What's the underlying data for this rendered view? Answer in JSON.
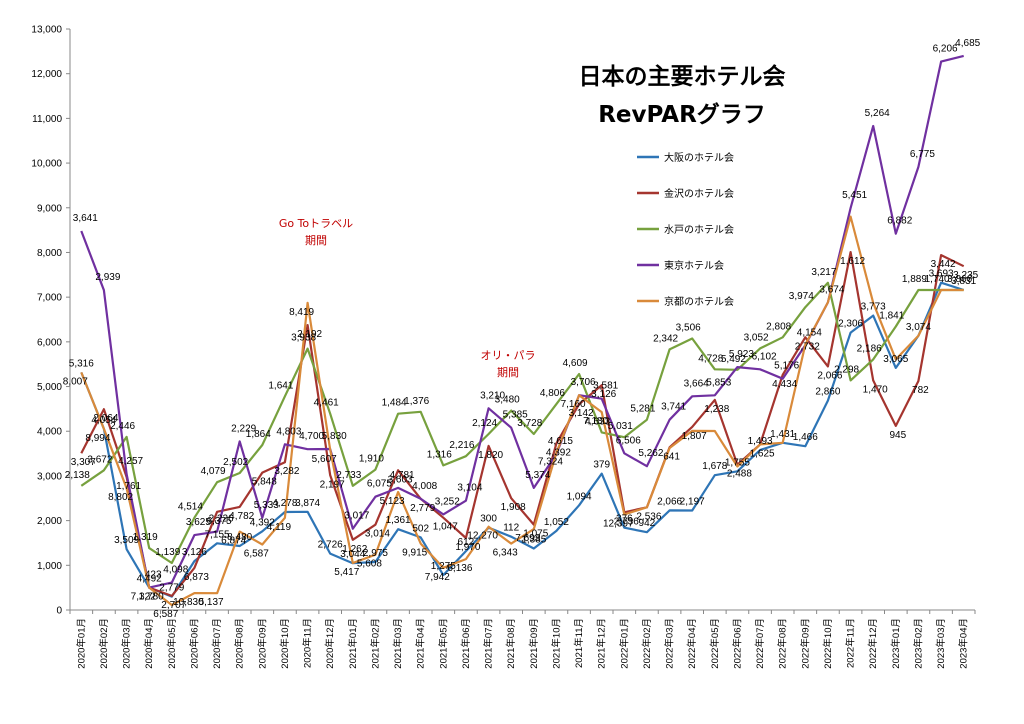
{
  "chart_data": {
    "type": "line",
    "title": "日本の主要ホテル会",
    "subtitle": "RevPARグラフ",
    "ylim": [
      0,
      13000
    ],
    "y_ticks": [
      "0",
      "1,000",
      "2,000",
      "3,000",
      "4,000",
      "5,000",
      "6,000",
      "7,000",
      "8,000",
      "9,000",
      "10,000",
      "11,000",
      "12,000",
      "13,000"
    ],
    "grid": false,
    "legend_position": "right-middle",
    "categories": [
      "2020年01月",
      "2020年02月",
      "2020年03月",
      "2020年04月",
      "2020年05月",
      "2020年06月",
      "2020年07月",
      "2020年08月",
      "2020年09月",
      "2020年10月",
      "2020年11月",
      "2020年12月",
      "2021年01月",
      "2021年02月",
      "2021年03月",
      "2021年04月",
      "2021年05月",
      "2021年06月",
      "2021年07月",
      "2021年08月",
      "2021年09月",
      "2021年10月",
      "2021年11月",
      "2021年12月",
      "2022年01月",
      "2022年02月",
      "2022年03月",
      "2022年04月",
      "2022年05月",
      "2022年06月",
      "2022年07月",
      "2022年08月",
      "2022年09月",
      "2022年10月",
      "2022年11月",
      "2022年12月",
      "2023年01月",
      "2023年02月",
      "2023年03月",
      "2023年04月"
    ],
    "series": [
      {
        "name": "大阪のホテル会",
        "color": "#2e75b6",
        "values": [
          5316,
          4054,
          1361,
          502,
          300,
          1094,
          1493,
          1431,
          1761,
          2192,
          2197,
          1262,
          1047,
          1075,
          1807,
          1625,
          782,
          1319,
          1841,
          1641,
          1376,
          1770,
          2342,
          3052,
          1841,
          1740,
          2229,
          2226,
          3017,
          3104,
          3581,
          3741,
          3664,
          4685,
          6206,
          6587,
          5417,
          6136,
          7324,
          7160
        ]
      },
      {
        "name": "金沢のホテル会",
        "color": "#a5352f",
        "values": [
          3509,
          4492,
          2975,
          502,
          316,
          942,
          2197,
          2306,
          3074,
          3307,
          6375,
          3014,
          1570,
          1908,
          3126,
          2488,
          2066,
          1612,
          3672,
          2502,
          1910,
          3728,
          4606,
          5031,
          2186,
          2298,
          3641,
          4098,
          4700,
          3252,
          3706,
          5262,
          6102,
          5451,
          8007,
          5137,
          4119,
          5123,
          7942,
          7693
        ]
      },
      {
        "name": "水戸のホテル会",
        "color": "#77a13e",
        "values": [
          2779,
          3126,
          3874,
          1385,
          1052,
          2066,
          2860,
          3065,
          3693,
          4782,
          5848,
          4392,
          2779,
          3142,
          4392,
          4434,
          3235,
          3442,
          3938,
          4461,
          3938,
          4606,
          5281,
          3974,
          3866,
          4257,
          5830,
          6075,
          5385,
          5374,
          5853,
          6102,
          6775,
          7322,
          5137,
          5608,
          6343,
          7160,
          7160,
          7160
        ]
      },
      {
        "name": "東京ホテル会",
        "color": "#7030a0",
        "values": [
          8480,
          7155,
          3044,
          502,
          612,
          1676,
          1755,
          3773,
          2064,
          3707,
          3597,
          3603,
          1820,
          2536,
          2732,
          2488,
          2138,
          2446,
          4514,
          4079,
          2733,
          3488,
          4806,
          4728,
          3506,
          3217,
          4257,
          4781,
          4803,
          5436,
          5385,
          5176,
          5923,
          6882,
          8994,
          10830,
          8419,
          9915,
          12270,
          12397
        ]
      },
      {
        "name": "京都のホテル会",
        "color": "#d98a3a",
        "values": [
          5316,
          4054,
          2726,
          502,
          112,
          379,
          376,
          1755,
          1466,
          2064,
          6873,
          3582,
          1051,
          1238,
          2641,
          1485,
          945,
          1139,
          1864,
          1486,
          1810,
          3520,
          4806,
          4428,
          2138,
          2298,
          3625,
          4008,
          4006,
          3210,
          3706,
          3741,
          5938,
          6882,
          8802,
          6874,
          5608,
          6136,
          7160,
          7160
        ]
      }
    ],
    "data_labels_visible": [
      "5,316",
      "4,054",
      "3,509",
      "4,492",
      "2,779",
      "3,126",
      "7,155",
      "8,480",
      "4,392",
      "4,278",
      "3,874",
      "2,726",
      "3,044",
      "2,975",
      "1,361",
      "502",
      "1,275",
      "612",
      "300",
      "112",
      "1,385",
      "1,052",
      "1,094",
      "379",
      "376",
      "942",
      "2,066",
      "2,197",
      "1,678",
      "1,755",
      "1,493",
      "1,431",
      "1,466",
      "2,860",
      "2,306",
      "3,773",
      "3,065",
      "3,074",
      "3,693",
      "3,831",
      "3,307",
      "2,064",
      "1,761",
      "1,780",
      "2,707",
      "6,873",
      "6,375",
      "4,782",
      "5,848",
      "3,282",
      "2,192",
      "2,197",
      "1,262",
      "3,014",
      "3,603",
      "2,779",
      "1,047",
      "1,970",
      "1,820",
      "1,908",
      "1,075",
      "4,392",
      "3,142",
      "3,126",
      "2,736",
      "2,536",
      "641",
      "1,807",
      "1,238",
      "2,488",
      "1,625",
      "4,434",
      "2,732",
      "2,066",
      "1,612",
      "1,470",
      "945",
      "782",
      "3,442",
      "3,235",
      "2,138",
      "3,672",
      "2,446",
      "1,319",
      "1,139",
      "4,514",
      "4,079",
      "2,502",
      "1,864",
      "1,641",
      "3,938",
      "4,461",
      "2,733",
      "1,910",
      "1,484",
      "1,376",
      "1,316",
      "2,216",
      "2,124",
      "3,480",
      "3,728",
      "4,806",
      "4,609",
      "4,633",
      "5,031",
      "5,281",
      "2,342",
      "3,506",
      "4,728",
      "5,492",
      "3,052",
      "2,808",
      "3,974",
      "3,217",
      "2,298",
      "2,186",
      "1,841",
      "1,889",
      "1,740",
      "3,866",
      "3,641",
      "2,939",
      "4,257",
      "423",
      "4,098",
      "3,625",
      "2,226",
      "2,229",
      "5,333",
      "4,803",
      "4,700",
      "5,830",
      "3,017",
      "6,075",
      "4,781",
      "4,008",
      "3,252",
      "3,104",
      "3,210",
      "5,385",
      "5,374",
      "4,615",
      "3,706",
      "3,581",
      "6,506",
      "5,262",
      "3,741",
      "3,664",
      "5,853",
      "5,923",
      "6,102",
      "5,176",
      "4,154",
      "3,674",
      "5,451",
      "5,264",
      "6,882",
      "6,775",
      "6,206",
      "4,685",
      "8,007",
      "8,994",
      "8,802",
      "7,322",
      "6,587",
      "10,830",
      "5,137",
      "6,874",
      "6,587",
      "4,119",
      "8,419",
      "5,607",
      "5,417",
      "5,608",
      "5,123",
      "9,915",
      "7,942",
      "6,136",
      "12,270",
      "6,343",
      "7,693",
      "7,324",
      "7,160",
      "7,180",
      "12,397"
    ],
    "annotations": [
      {
        "text": "Go Toトラベル",
        "line2": "期間"
      },
      {
        "text": "オリ・パラ",
        "line2": "期間"
      }
    ]
  }
}
